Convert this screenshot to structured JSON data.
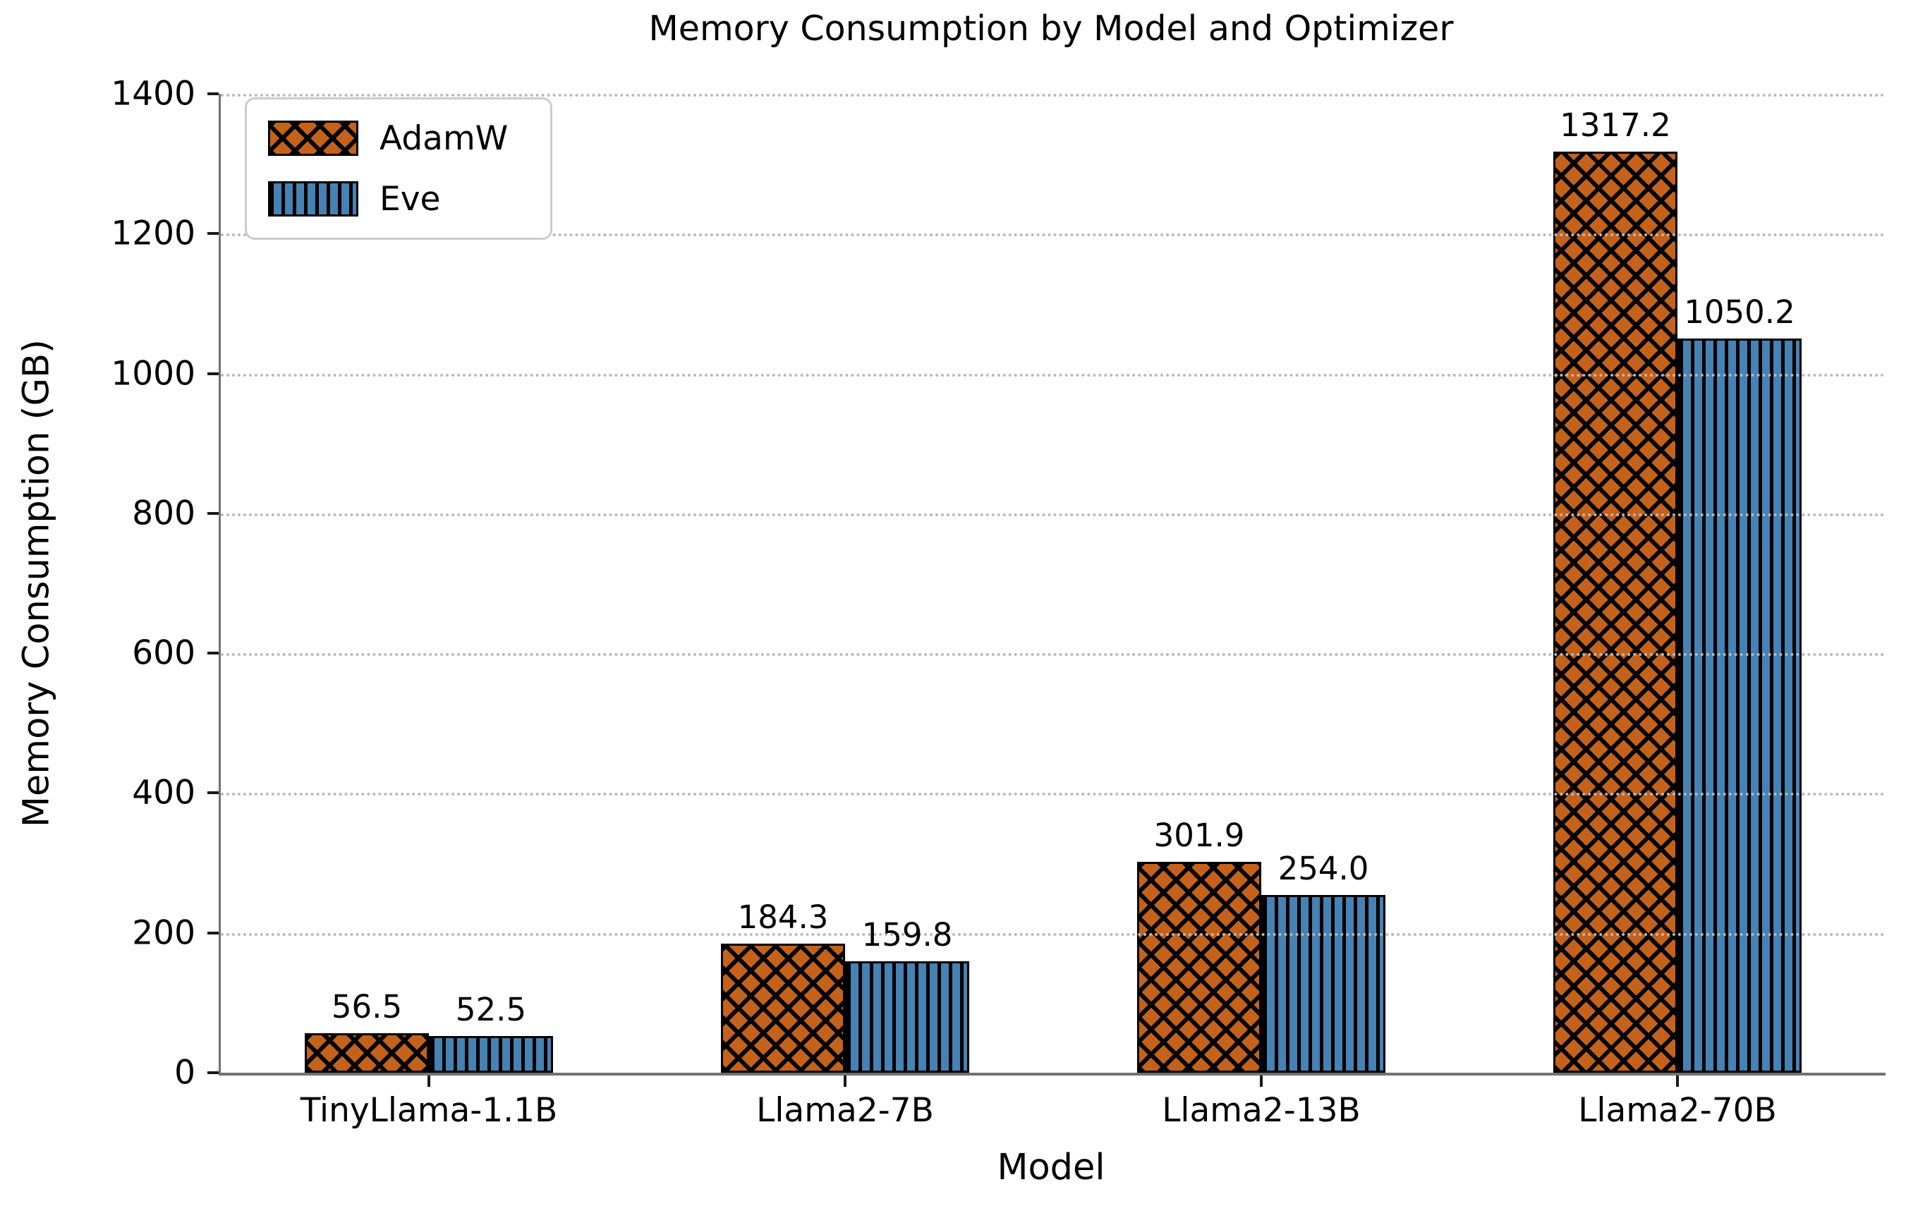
{
  "chart_data": {
    "type": "bar",
    "title": "Memory Consumption by Model and Optimizer",
    "xlabel": "Model",
    "ylabel": "Memory Consumption (GB)",
    "categories": [
      "TinyLlama-1.1B",
      "Llama2-7B",
      "Llama2-13B",
      "Llama2-70B"
    ],
    "series": [
      {
        "name": "AdamW",
        "values": [
          56.5,
          184.3,
          301.9,
          1317.2
        ],
        "color": "#c4621b",
        "hatch": "xx"
      },
      {
        "name": "Eve",
        "values": [
          52.5,
          159.8,
          254.0,
          1050.2
        ],
        "color": "#4682b4",
        "hatch": "||"
      }
    ],
    "ylim": [
      0,
      1400
    ],
    "yticks": [
      0,
      200,
      400,
      600,
      800,
      1000,
      1200,
      1400
    ],
    "grid": true,
    "grid_style": "dotted",
    "grid_over_bars": true,
    "legend_position": "upper-left",
    "bar_labels": true,
    "colors": {
      "adamw_fill": "#c4621b",
      "eve_fill": "#4682b4",
      "hatch_line": "#000000",
      "bar_edge": "#000000",
      "gridline": "#b9b9b9",
      "spine": "#717171",
      "text": "#000000",
      "legend_border": "#cccccc"
    }
  }
}
